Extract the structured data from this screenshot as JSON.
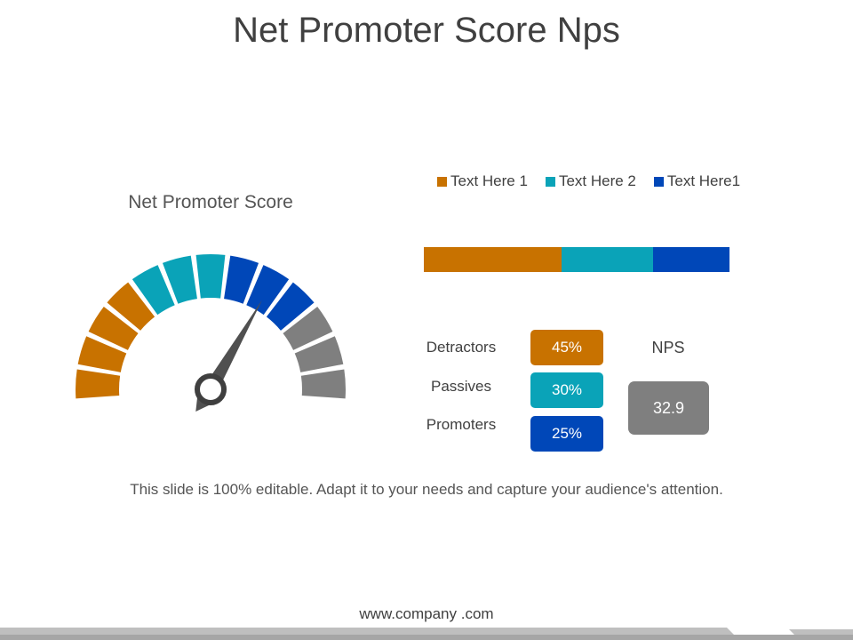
{
  "title": "Net Promoter Score Nps",
  "gauge": {
    "title": "Net Promoter Score",
    "segments": [
      {
        "color": "#c87200"
      },
      {
        "color": "#c87200"
      },
      {
        "color": "#c87200"
      },
      {
        "color": "#c87200"
      },
      {
        "color": "#0aa3b8"
      },
      {
        "color": "#0aa3b8"
      },
      {
        "color": "#0aa3b8"
      },
      {
        "color": "#0047b8"
      },
      {
        "color": "#0047b8"
      },
      {
        "color": "#0047b8"
      },
      {
        "color": "#7f7f7f"
      },
      {
        "color": "#7f7f7f"
      },
      {
        "color": "#7f7f7f"
      }
    ],
    "needle_color": "#505050"
  },
  "legend": [
    {
      "label": "Text Here 1",
      "color": "#c87200"
    },
    {
      "label": "Text Here 2",
      "color": "#0aa3b8"
    },
    {
      "label": "Text Here1",
      "color": "#0047b8"
    }
  ],
  "chart_data": {
    "type": "bar",
    "orientation": "horizontal-stacked",
    "series": [
      {
        "name": "Text Here 1",
        "value": 45,
        "color": "#c87200"
      },
      {
        "name": "Text Here 2",
        "value": 30,
        "color": "#0aa3b8"
      },
      {
        "name": "Text Here1",
        "value": 25,
        "color": "#0047b8"
      }
    ],
    "legend_position": "top",
    "grid": false
  },
  "breakdown": [
    {
      "label": "Detractors",
      "value": "45%",
      "color": "#c87200"
    },
    {
      "label": "Passives",
      "value": "30%",
      "color": "#0aa3b8"
    },
    {
      "label": "Promoters",
      "value": "25%",
      "color": "#0047b8"
    }
  ],
  "nps": {
    "label": "NPS",
    "value": "32.9",
    "color": "#7f7f7f"
  },
  "caption": "This slide is 100% editable. Adapt it to your needs and capture your audience's attention.",
  "footer": {
    "text": "www.company .com"
  }
}
